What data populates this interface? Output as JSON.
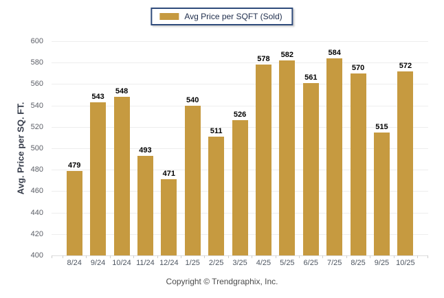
{
  "legend": {
    "label": "Avg Price per SQFT (Sold)"
  },
  "y_axis": {
    "title": "Avg. Price per SQ. FT."
  },
  "footer": {
    "copyright": "Copyright © Trendgraphix, Inc."
  },
  "colors": {
    "bar": "#c69a40",
    "legend_border": "#2e4a7a",
    "gridline": "#ededed",
    "axis_text": "#4d5560",
    "value_label": "#000000"
  },
  "chart_data": {
    "type": "bar",
    "title": "",
    "series_name": "Avg Price per SQFT (Sold)",
    "categories": [
      "8/24",
      "9/24",
      "10/24",
      "11/24",
      "12/24",
      "1/25",
      "2/25",
      "3/25",
      "4/25",
      "5/25",
      "6/25",
      "7/25",
      "8/25",
      "9/25",
      "10/25"
    ],
    "values": [
      479,
      543,
      548,
      493,
      471,
      540,
      511,
      526,
      578,
      582,
      561,
      584,
      570,
      515,
      572
    ],
    "xlabel": "",
    "ylabel": "Avg. Price per SQ. FT.",
    "ylim": [
      400,
      600
    ],
    "ytick_step": 20,
    "grid": true,
    "legend_position": "top-center",
    "value_labels": true
  }
}
